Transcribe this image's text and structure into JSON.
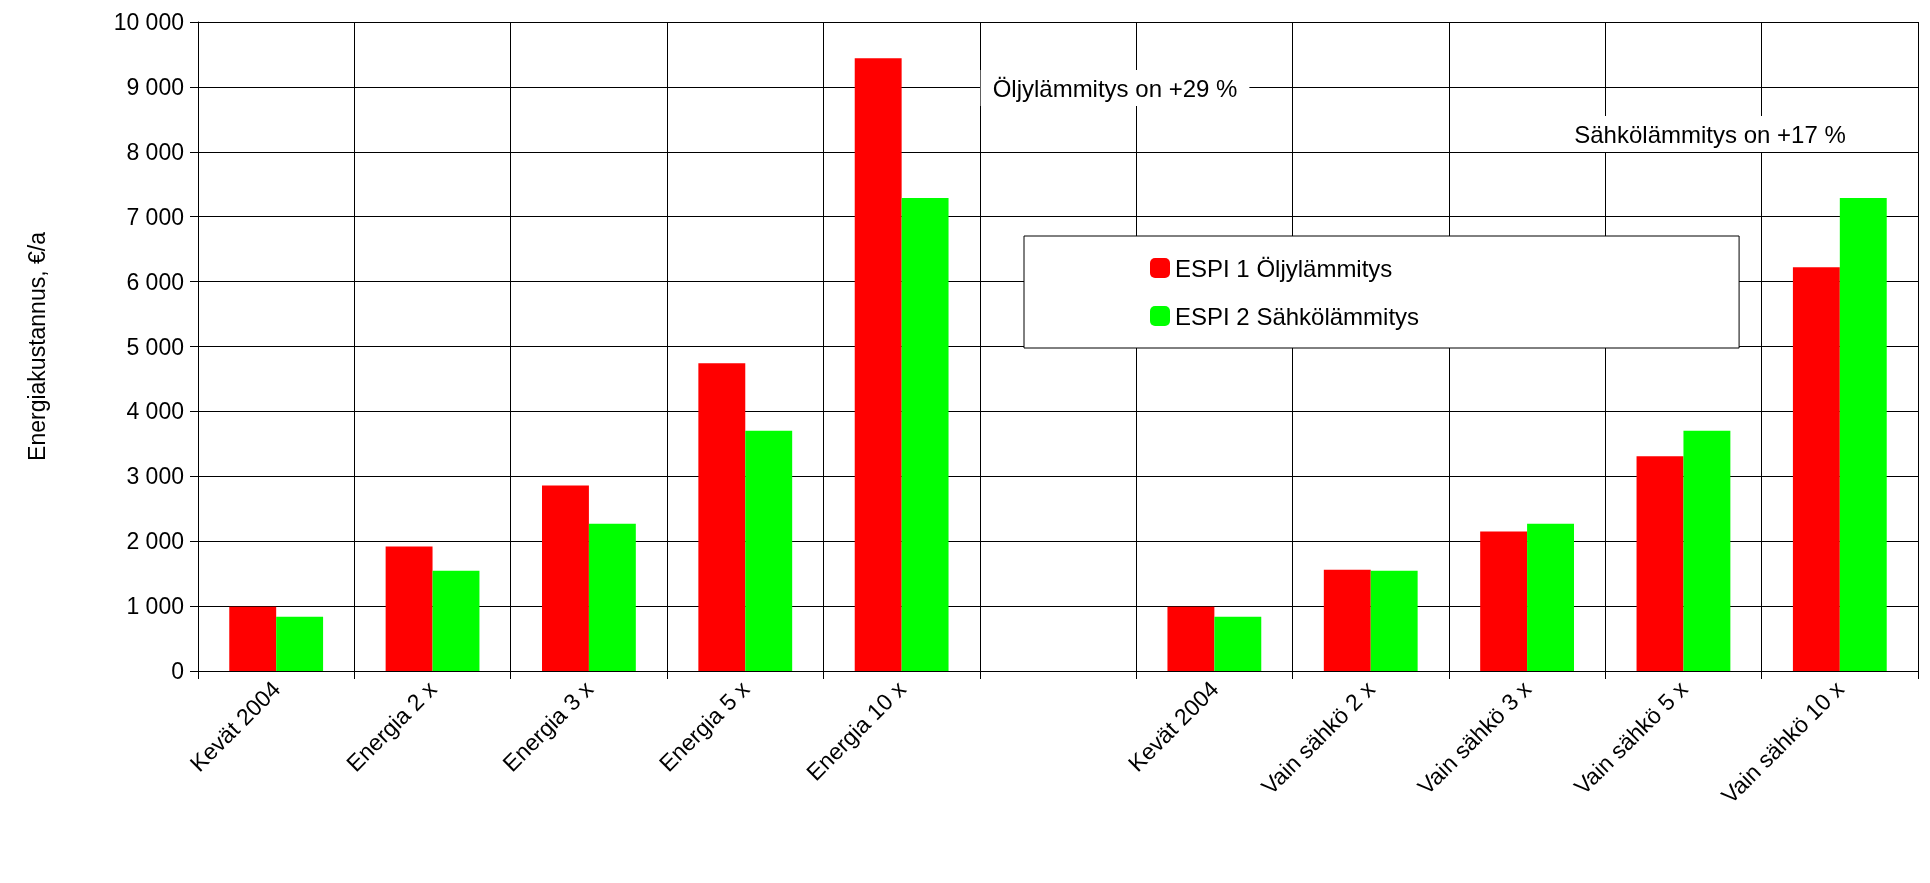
{
  "chart_data": {
    "type": "bar",
    "ylabel": "Energiakustannus, €/a",
    "categories": [
      "Kevät 2004",
      "Energia 2 x",
      "Energia 3 x",
      "Energia 5 x",
      "Energia 10 x",
      null,
      "Kevät 2004",
      "Vain sähkö 2 x",
      "Vain sähkö 3 x",
      "Vain sähkö 5 x",
      "Vain sähkö 10 x"
    ],
    "series": [
      {
        "name": "ESPI 1 Öljylämmitys",
        "color": "#ff0000",
        "values": [
          990,
          1920,
          2860,
          4740,
          9440,
          null,
          990,
          1560,
          2150,
          3310,
          6220
        ]
      },
      {
        "name": "ESPI 2 Sähkölämmitys",
        "color": "#00ff00",
        "values": [
          835,
          1545,
          2270,
          3700,
          7290,
          null,
          835,
          1545,
          2270,
          3700,
          7290
        ]
      }
    ],
    "ylim": [
      0,
      10000
    ],
    "yticks": [
      0,
      {
        "value": 1000,
        "label": "1 000"
      },
      {
        "value": 2000,
        "label": "2 000"
      },
      {
        "value": 3000,
        "label": "3 000"
      },
      {
        "value": 4000,
        "label": "4 000"
      },
      {
        "value": 5000,
        "label": "5 000"
      },
      {
        "value": 6000,
        "label": "6 000"
      },
      {
        "value": 7000,
        "label": "7 000"
      },
      {
        "value": 8000,
        "label": "8 000"
      },
      {
        "value": 9000,
        "label": "9 000"
      },
      {
        "value": 10000,
        "label": "10 000"
      }
    ],
    "annotations": [
      "Öljylämmitys on +29 %",
      "Sähkölämmitys on +17 %"
    ],
    "grid": true,
    "legend": "right"
  }
}
